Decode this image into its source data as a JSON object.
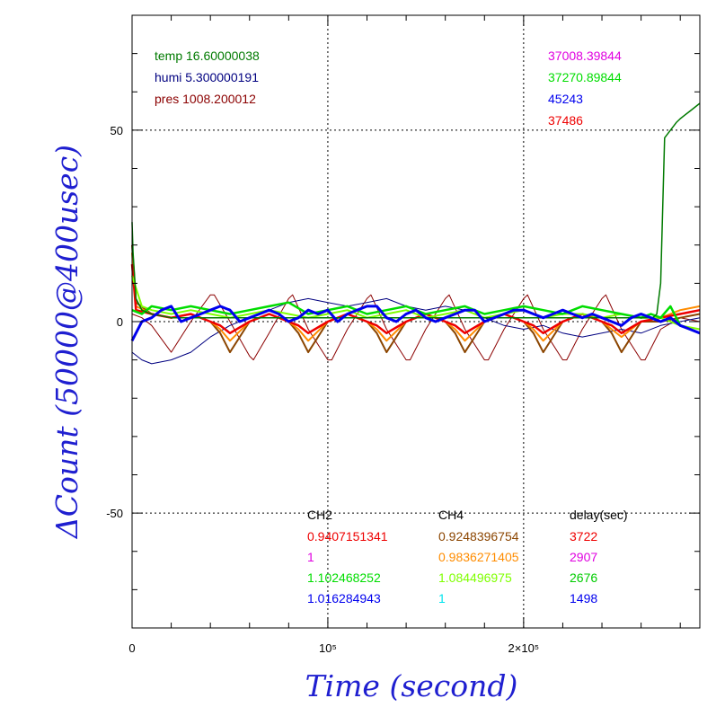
{
  "chart_data": {
    "type": "line",
    "xlabel": "Time (second)",
    "ylabel": "ΔCount (50000@400usec)",
    "xlim": [
      0,
      290000
    ],
    "ylim": [
      -80,
      80
    ],
    "grid": true,
    "x_ticks": [
      {
        "value": 0,
        "label": "0"
      },
      {
        "value": 100000,
        "label": "10⁵"
      },
      {
        "value": 200000,
        "label": "2×10⁵"
      }
    ],
    "y_ticks": [
      {
        "value": -50,
        "label": "-50"
      },
      {
        "value": 0,
        "label": "0"
      },
      {
        "value": 50,
        "label": "50"
      }
    ],
    "env": [
      {
        "text": "temp 16.60000038",
        "color": "#8b0000"
      },
      {
        "text": "humi 5.300000191",
        "color": "#007a00"
      },
      {
        "text": "pres 1008.200012",
        "color": "#000080"
      }
    ],
    "counts": [
      {
        "text": "37008.39844",
        "color": "#ee0000"
      },
      {
        "text": "37270.89844",
        "color": "#e000e0"
      },
      {
        "text": "45243",
        "color": "#00dd00"
      },
      {
        "text": "37486",
        "color": "#0000ee"
      }
    ],
    "table": {
      "headers": [
        "CH2",
        "CH4",
        "delay(sec)"
      ],
      "rows": [
        {
          "ch2": "0.9407151341",
          "ch2_color": "#ee0000",
          "ch4": "0.9248396754",
          "ch4_color": "#8b4500",
          "delay": "3722",
          "delay_color": "#ee0000"
        },
        {
          "ch2": "1",
          "ch2_color": "#e000e0",
          "ch4": "0.9836271405",
          "ch4_color": "#ff8c00",
          "delay": "2907",
          "delay_color": "#e000e0"
        },
        {
          "ch2": "1.102468252",
          "ch2_color": "#00dd00",
          "ch4": "1.084496975",
          "ch4_color": "#7fff00",
          "delay": "2676",
          "delay_color": "#00cc00"
        },
        {
          "ch2": "1.016284943",
          "ch2_color": "#0000ee",
          "ch4": "1",
          "ch4_color": "#00e5ee",
          "delay": "1498",
          "delay_color": "#0000ee"
        }
      ]
    },
    "series": [
      {
        "color": "#8b0000",
        "width": 1,
        "x": [
          0,
          5000,
          10000,
          20000,
          30000,
          40000,
          42000,
          50000,
          60000,
          62000,
          70000,
          80000,
          82000,
          90000,
          100000,
          102000,
          110000,
          120000,
          122000,
          130000,
          140000,
          142000,
          150000,
          160000,
          162000,
          170000,
          180000,
          182000,
          190000,
          200000,
          202000,
          210000,
          220000,
          222000,
          230000,
          240000,
          242000,
          250000,
          260000,
          262000,
          270000,
          280000,
          290000
        ],
        "y": [
          2,
          1,
          -1,
          -8,
          0,
          7,
          7,
          0,
          -9,
          -10,
          -3,
          6,
          7,
          -2,
          -10,
          -10,
          -2,
          6,
          7,
          -2,
          -10,
          -10,
          -2,
          6,
          7,
          -2,
          -10,
          -10,
          -2,
          6,
          7,
          -2,
          -10,
          -10,
          -2,
          6,
          7,
          -2,
          -10,
          -10,
          -2,
          1,
          0
        ]
      },
      {
        "color": "#000080",
        "width": 1,
        "x": [
          0,
          5000,
          10000,
          20000,
          30000,
          40000,
          50000,
          60000,
          70000,
          80000,
          90000,
          100000,
          110000,
          120000,
          130000,
          140000,
          150000,
          160000,
          170000,
          180000,
          190000,
          200000,
          210000,
          220000,
          230000,
          240000,
          250000,
          260000,
          270000,
          280000,
          290000
        ],
        "y": [
          -8,
          -10,
          -11,
          -10,
          -8,
          -4,
          -1,
          1,
          3,
          5,
          6,
          5,
          4,
          5,
          6,
          4,
          3,
          4,
          3,
          1,
          -1,
          -2,
          -1,
          -3,
          -4,
          -3,
          -2,
          -3,
          -1,
          0,
          1
        ]
      },
      {
        "color": "#8b4500",
        "width": 2,
        "x": [
          0,
          2000,
          10000,
          20000,
          30000,
          40000,
          45000,
          50000,
          60000,
          70000,
          80000,
          85000,
          90000,
          100000,
          110000,
          120000,
          125000,
          130000,
          140000,
          150000,
          160000,
          165000,
          170000,
          180000,
          190000,
          200000,
          205000,
          210000,
          220000,
          230000,
          240000,
          245000,
          250000,
          260000,
          270000,
          280000,
          290000
        ],
        "y": [
          20,
          5,
          2,
          1,
          2,
          0,
          -3,
          -8,
          0,
          2,
          0,
          -3,
          -8,
          0,
          2,
          0,
          -3,
          -8,
          0,
          2,
          0,
          -3,
          -8,
          0,
          2,
          0,
          -3,
          -8,
          0,
          2,
          0,
          -3,
          -8,
          0,
          0,
          1,
          2
        ]
      },
      {
        "color": "#ff8c00",
        "width": 2,
        "x": [
          0,
          2000,
          10000,
          20000,
          30000,
          40000,
          45000,
          50000,
          60000,
          70000,
          80000,
          85000,
          90000,
          100000,
          110000,
          120000,
          125000,
          130000,
          140000,
          150000,
          160000,
          165000,
          170000,
          180000,
          190000,
          200000,
          205000,
          210000,
          220000,
          230000,
          240000,
          245000,
          250000,
          260000,
          270000,
          280000,
          290000
        ],
        "y": [
          18,
          4,
          2,
          1,
          2,
          0,
          -2,
          -5,
          0,
          2,
          0,
          -2,
          -5,
          0,
          2,
          0,
          -2,
          -5,
          0,
          2,
          0,
          -2,
          -5,
          0,
          2,
          0,
          -2,
          -5,
          0,
          2,
          0,
          -2,
          -4,
          0,
          1,
          3,
          4
        ]
      },
      {
        "color": "#ee0000",
        "width": 2.5,
        "x": [
          0,
          2000,
          10000,
          20000,
          30000,
          40000,
          45000,
          50000,
          60000,
          70000,
          80000,
          85000,
          90000,
          100000,
          110000,
          120000,
          125000,
          130000,
          140000,
          150000,
          160000,
          165000,
          170000,
          180000,
          190000,
          200000,
          205000,
          210000,
          220000,
          230000,
          240000,
          245000,
          250000,
          260000,
          270000,
          280000,
          290000
        ],
        "y": [
          15,
          3,
          2,
          1,
          2,
          0,
          -1,
          -3,
          0,
          2,
          0,
          -1,
          -3,
          0,
          2,
          0,
          -1,
          -3,
          0,
          2,
          0,
          -1,
          -3,
          0,
          2,
          0,
          -1,
          -3,
          0,
          2,
          0,
          -1,
          -3,
          0,
          1,
          2,
          3
        ]
      },
      {
        "color": "#7fff00",
        "width": 2,
        "x": [
          0,
          5000,
          10000,
          20000,
          30000,
          40000,
          50000,
          60000,
          70000,
          80000,
          90000,
          100000,
          110000,
          120000,
          130000,
          140000,
          150000,
          160000,
          170000,
          180000,
          190000,
          200000,
          210000,
          220000,
          230000,
          240000,
          250000,
          260000,
          270000,
          280000,
          290000
        ],
        "y": [
          12,
          4,
          3,
          2,
          3,
          2,
          1,
          2,
          3,
          2,
          1,
          2,
          3,
          1,
          2,
          3,
          1,
          2,
          3,
          1,
          2,
          3,
          1,
          2,
          2,
          1,
          2,
          1,
          1,
          -1,
          -2
        ]
      },
      {
        "color": "#00dd00",
        "width": 2.5,
        "x": [
          0,
          5000,
          10000,
          20000,
          30000,
          40000,
          50000,
          60000,
          70000,
          80000,
          90000,
          100000,
          110000,
          120000,
          130000,
          140000,
          150000,
          160000,
          170000,
          180000,
          190000,
          200000,
          210000,
          220000,
          230000,
          240000,
          250000,
          260000,
          265000,
          270000,
          275000,
          280000,
          290000
        ],
        "y": [
          3,
          2,
          4,
          3,
          4,
          3,
          2,
          3,
          4,
          5,
          2,
          3,
          4,
          2,
          3,
          4,
          2,
          3,
          4,
          2,
          3,
          4,
          3,
          2,
          4,
          3,
          2,
          1,
          2,
          1,
          4,
          -1,
          -3
        ]
      },
      {
        "color": "#007a00",
        "width": 1.5,
        "x": [
          0,
          500,
          2000,
          5000,
          10000,
          20000,
          40000,
          60000,
          80000,
          100000,
          120000,
          140000,
          160000,
          180000,
          200000,
          220000,
          240000,
          260000,
          266000,
          268000,
          270000,
          272000,
          275000,
          278000,
          280000,
          285000,
          290000
        ],
        "y": [
          26,
          18,
          6,
          3,
          2,
          1,
          1,
          1,
          1,
          1,
          1,
          1,
          1,
          1,
          1,
          1,
          1,
          1,
          1,
          2,
          10,
          48,
          50,
          52,
          53,
          55,
          57
        ]
      },
      {
        "color": "#0000ee",
        "width": 3,
        "x": [
          0,
          5000,
          10000,
          15000,
          20000,
          25000,
          30000,
          35000,
          40000,
          45000,
          50000,
          55000,
          60000,
          65000,
          70000,
          75000,
          80000,
          85000,
          90000,
          95000,
          100000,
          105000,
          110000,
          115000,
          120000,
          125000,
          130000,
          135000,
          140000,
          145000,
          150000,
          155000,
          160000,
          165000,
          170000,
          175000,
          180000,
          185000,
          190000,
          195000,
          200000,
          205000,
          210000,
          215000,
          220000,
          225000,
          230000,
          235000,
          240000,
          245000,
          250000,
          255000,
          260000,
          265000,
          270000,
          275000,
          280000,
          285000,
          290000
        ],
        "y": [
          -5,
          0,
          1,
          3,
          4,
          0,
          1,
          2,
          3,
          4,
          3,
          0,
          1,
          2,
          3,
          2,
          0,
          1,
          3,
          2,
          3,
          0,
          2,
          3,
          4,
          4,
          1,
          0,
          2,
          3,
          1,
          0,
          1,
          2,
          3,
          3,
          0,
          1,
          2,
          3,
          3,
          2,
          1,
          2,
          3,
          2,
          1,
          2,
          1,
          0,
          -1,
          1,
          2,
          1,
          0,
          1,
          -1,
          -2,
          -3
        ]
      }
    ]
  }
}
